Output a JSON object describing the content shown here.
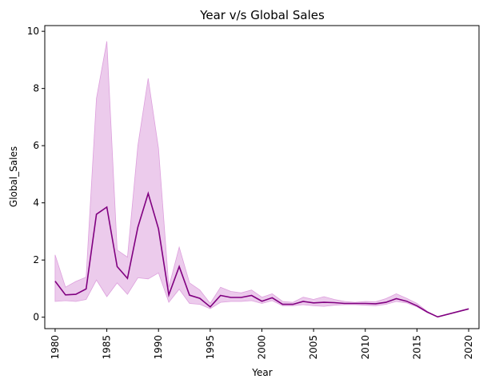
{
  "chart_data": {
    "type": "line",
    "title": "Year v/s Global Sales",
    "xlabel": "Year",
    "ylabel": "Global_Sales",
    "xlim": [
      1979,
      2021
    ],
    "ylim": [
      -0.4,
      10.2
    ],
    "xticks": [
      1980,
      1985,
      1990,
      1995,
      2000,
      2005,
      2010,
      2015,
      2020
    ],
    "yticks": [
      0,
      2,
      4,
      6,
      8,
      10
    ],
    "grid": false,
    "colors": {
      "line": "#800080",
      "band": "#DDA0DD"
    },
    "series": [
      {
        "x": [
          1980,
          1981,
          1982,
          1983,
          1984,
          1985,
          1986,
          1987,
          1988,
          1989,
          1990,
          1991,
          1992,
          1993,
          1994,
          1995,
          1996,
          1997,
          1998,
          1999,
          2000,
          2001,
          2002,
          2003,
          2004,
          2005,
          2006,
          2007,
          2008,
          2009,
          2010,
          2011,
          2012,
          2013,
          2014,
          2015,
          2016,
          2017,
          2020
        ],
        "y": [
          1.26,
          0.78,
          0.8,
          0.99,
          3.6,
          3.85,
          1.77,
          1.36,
          3.15,
          4.33,
          3.09,
          0.78,
          1.77,
          0.77,
          0.66,
          0.36,
          0.76,
          0.69,
          0.69,
          0.76,
          0.56,
          0.68,
          0.45,
          0.45,
          0.55,
          0.5,
          0.52,
          0.51,
          0.48,
          0.48,
          0.48,
          0.47,
          0.52,
          0.65,
          0.56,
          0.4,
          0.18,
          0.01,
          0.29
        ],
        "lower": [
          0.55,
          0.58,
          0.55,
          0.62,
          1.3,
          0.72,
          1.2,
          0.8,
          1.38,
          1.34,
          1.55,
          0.52,
          0.98,
          0.48,
          0.45,
          0.3,
          0.52,
          0.55,
          0.55,
          0.58,
          0.48,
          0.58,
          0.4,
          0.4,
          0.44,
          0.4,
          0.38,
          0.42,
          0.44,
          0.44,
          0.42,
          0.4,
          0.45,
          0.55,
          0.5,
          0.36,
          0.16,
          0.01,
          0.29
        ],
        "upper": [
          2.18,
          1.05,
          1.25,
          1.4,
          7.65,
          9.65,
          2.35,
          2.1,
          6.0,
          8.35,
          5.9,
          1.05,
          2.45,
          1.2,
          0.95,
          0.48,
          1.05,
          0.9,
          0.85,
          0.95,
          0.7,
          0.82,
          0.55,
          0.52,
          0.7,
          0.62,
          0.72,
          0.62,
          0.55,
          0.52,
          0.55,
          0.54,
          0.65,
          0.82,
          0.66,
          0.48,
          0.2,
          0.02,
          0.3
        ]
      }
    ]
  }
}
